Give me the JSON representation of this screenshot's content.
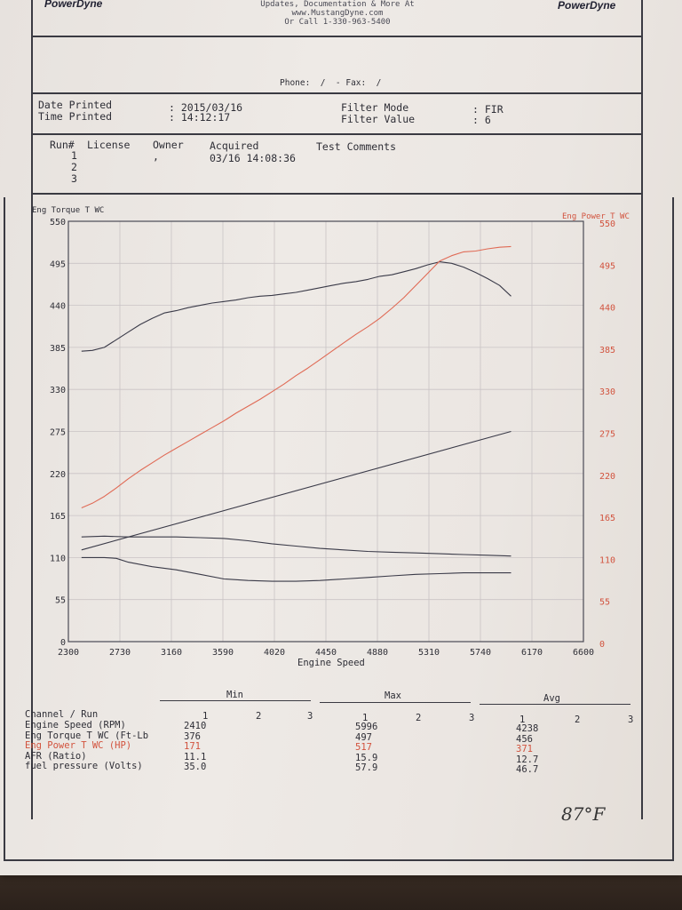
{
  "header": {
    "logo_left": "PowerDyne",
    "logo_right": "PowerDyne",
    "line1": "Updates, Documentation & More At",
    "line2": "www.MustangDyne.com",
    "line3": "Or Call 1-330-963-5400",
    "phone_fax": "Phone:  /  - Fax:  /"
  },
  "print_info": {
    "date_label": "Date Printed",
    "date_value": ": 2015/03/16",
    "time_label": "Time Printed",
    "time_value": ": 14:12:17",
    "filter_mode_label": "Filter Mode",
    "filter_mode_value": ": FIR",
    "filter_value_label": "Filter Value",
    "filter_value_value": ": 6"
  },
  "runs": {
    "headers": [
      "Run#",
      "License",
      "Owner",
      "Acquired",
      "Test Comments"
    ],
    "run_numbers": [
      "1",
      "2",
      "3"
    ],
    "owner_mark": ",",
    "acquired": "03/16 14:08:36"
  },
  "chart_data": {
    "type": "line",
    "ylabel_left": "Eng Torque T WC",
    "ylabel_right": "Eng Power T WC",
    "xlabel": "Engine Speed",
    "xlim": [
      2300,
      6600
    ],
    "ylim": [
      0,
      550
    ],
    "x_ticks": [
      2300,
      2730,
      3160,
      3590,
      4020,
      4450,
      4880,
      5310,
      5740,
      6170,
      6600
    ],
    "y_ticks": [
      0,
      55,
      110,
      165,
      220,
      275,
      330,
      385,
      440,
      495,
      550
    ],
    "grid": true,
    "series": [
      {
        "axis": "left",
        "color": "#3a3a48",
        "x": [
          2410,
          2500,
          2600,
          2700,
          2800,
          2900,
          3000,
          3100,
          3200,
          3300,
          3400,
          3500,
          3600,
          3700,
          3800,
          3900,
          4000,
          4100,
          4200,
          4300,
          4400,
          4500,
          4600,
          4700,
          4800,
          4900,
          5000,
          5100,
          5200,
          5300,
          5400,
          5500,
          5600,
          5700,
          5800,
          5900,
          5996
        ],
        "y": [
          380,
          381,
          385,
          395,
          405,
          415,
          423,
          430,
          433,
          437,
          440,
          443,
          445,
          447,
          450,
          452,
          453,
          455,
          457,
          460,
          463,
          466,
          469,
          471,
          474,
          478,
          480,
          484,
          488,
          493,
          497,
          495,
          490,
          483,
          475,
          466,
          452
        ]
      },
      {
        "axis": "right",
        "color": "#e06a55",
        "x": [
          2410,
          2500,
          2600,
          2700,
          2800,
          2900,
          3000,
          3100,
          3200,
          3300,
          3400,
          3500,
          3600,
          3700,
          3800,
          3900,
          4000,
          4100,
          4200,
          4300,
          4400,
          4500,
          4600,
          4700,
          4800,
          4900,
          5000,
          5100,
          5200,
          5300,
          5400,
          5500,
          5600,
          5700,
          5800,
          5900,
          5996
        ],
        "y": [
          175,
          181,
          190,
          201,
          213,
          224,
          234,
          244,
          253,
          262,
          271,
          280,
          289,
          299,
          308,
          317,
          327,
          337,
          348,
          358,
          369,
          380,
          391,
          402,
          412,
          423,
          436,
          450,
          466,
          482,
          498,
          505,
          510,
          511,
          514,
          516,
          517
        ]
      },
      {
        "axis": "left",
        "color": "#3a3a48",
        "x": [
          2410,
          5996
        ],
        "y": [
          120,
          275
        ]
      },
      {
        "axis": "left",
        "color": "#3a3a48",
        "x": [
          2410,
          2600,
          2800,
          3000,
          3200,
          3400,
          3600,
          3800,
          4000,
          4200,
          4400,
          4600,
          4800,
          5000,
          5200,
          5400,
          5600,
          5800,
          5996
        ],
        "y": [
          137,
          138,
          137,
          137,
          137,
          136,
          135,
          132,
          128,
          125,
          122,
          120,
          118,
          117,
          116,
          115,
          114,
          113,
          112
        ]
      },
      {
        "axis": "left",
        "color": "#3a3a48",
        "x": [
          2410,
          2600,
          2700,
          2800,
          3000,
          3200,
          3400,
          3600,
          3800,
          4000,
          4200,
          4400,
          4600,
          4800,
          5000,
          5200,
          5400,
          5600,
          5800,
          5996
        ],
        "y": [
          110,
          110,
          109,
          104,
          98,
          94,
          88,
          82,
          80,
          79,
          79,
          80,
          82,
          84,
          86,
          88,
          89,
          90,
          90,
          90
        ]
      }
    ]
  },
  "chart_labels": {
    "left_axis_title": "Eng Torque T WC",
    "right_axis_title": "Eng Power T WC",
    "x_axis_title": "Engine Speed"
  },
  "stats": {
    "group_min": "Min",
    "group_max": "Max",
    "group_avg": "Avg",
    "channel_header": "Channel / Run",
    "run_cols": [
      "1",
      "2",
      "3"
    ],
    "rows": [
      {
        "name": "Engine Speed (RPM)",
        "min": "2410",
        "max": "5996",
        "avg": "4238",
        "red": false
      },
      {
        "name": "Eng Torque T WC (Ft-Lb",
        "min": "376",
        "max": "497",
        "avg": "456",
        "red": false
      },
      {
        "name": "Eng Power T WC (HP)",
        "min": "171",
        "max": "517",
        "avg": "371",
        "red": true
      },
      {
        "name": "AFR (Ratio)",
        "min": "11.1",
        "max": "15.9",
        "avg": "12.7",
        "red": false
      },
      {
        "name": "fuel pressure (Volts)",
        "min": "35.0",
        "max": "57.9",
        "avg": "46.7",
        "red": false
      }
    ]
  },
  "handwritten_note": "87°F"
}
